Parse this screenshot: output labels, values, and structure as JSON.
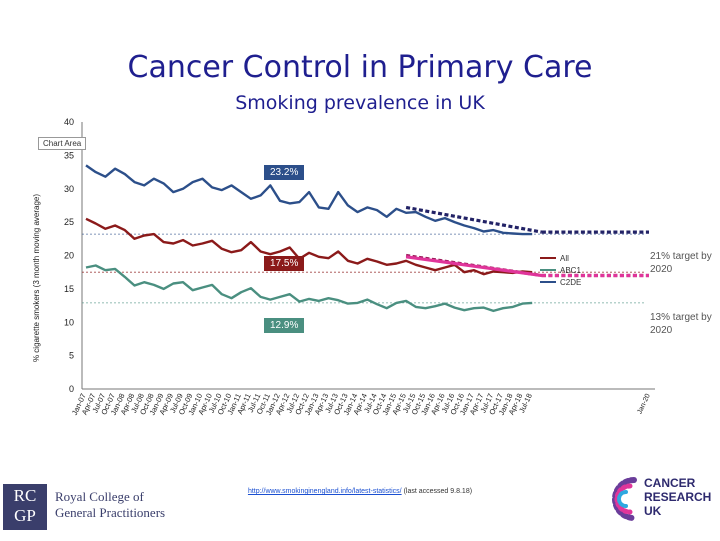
{
  "title": "Cancer Control in Primary Care",
  "subtitle": "Smoking prevalence in UK",
  "chart_area_tag": "Chart Area",
  "chart_data": {
    "type": "line",
    "ylabel": "% cigarette smokers (3 month moving average)",
    "ylim": [
      0,
      40
    ],
    "yticks": [
      0,
      5,
      10,
      15,
      20,
      25,
      30,
      35,
      40
    ],
    "xticklabels": [
      "Jan-07",
      "Apr-07",
      "Jul-07",
      "Oct-07",
      "Jan-08",
      "Apr-08",
      "Jul-08",
      "Oct-08",
      "Jan-09",
      "Apr-09",
      "Jul-09",
      "Oct-09",
      "Jan-10",
      "Apr-10",
      "Jul-10",
      "Oct-10",
      "Jan-11",
      "Apr-11",
      "Jul-11",
      "Oct-11",
      "Jan-12",
      "Apr-12",
      "Jul-12",
      "Oct-12",
      "Jan-13",
      "Apr-13",
      "Jul-13",
      "Oct-13",
      "Jan-14",
      "Apr-14",
      "Jul-14",
      "Oct-14",
      "Jan-15",
      "Apr-15",
      "Jul-15",
      "Oct-15",
      "Jan-16",
      "Apr-16",
      "Jul-16",
      "Oct-16",
      "Jan-17",
      "Apr-17",
      "Jul-17",
      "Oct-17",
      "Jan-18",
      "Apr-18",
      "Jul-18"
    ],
    "extra_xticklabel": "Jan-20",
    "series": [
      {
        "name": "C2DE",
        "color": "#2c4f8a",
        "values": [
          33.5,
          32.5,
          31.8,
          33,
          32.2,
          31,
          30.5,
          31.5,
          30.8,
          29.5,
          30,
          31,
          31.5,
          30.2,
          29.8,
          30.5,
          29.5,
          28.5,
          29,
          30.5,
          28.2,
          27.8,
          28,
          29.5,
          27.2,
          27,
          29.5,
          27.5,
          26.5,
          27.2,
          26.8,
          25.8,
          27,
          26.4,
          26.5,
          25.8,
          25.2,
          25.6,
          25,
          24.5,
          24.1,
          23.6,
          23.8,
          23.4,
          23.3,
          23.2,
          23.2
        ]
      },
      {
        "name": "All",
        "color": "#8b1a1a",
        "values": [
          25.5,
          24.8,
          24,
          24.5,
          23.8,
          22.5,
          23,
          23.2,
          22,
          21.8,
          22.3,
          21.5,
          21.8,
          22.2,
          21,
          20.5,
          20.8,
          22,
          20.6,
          20.2,
          20.6,
          21.2,
          19.5,
          20.4,
          19.8,
          19.6,
          20.6,
          19.2,
          18.8,
          19.5,
          19.1,
          18.6,
          18.8,
          19.2,
          18.6,
          18.2,
          17.8,
          18.2,
          18.6,
          17.5,
          17.8,
          17.2,
          17.6,
          17.5,
          17.4,
          17.6,
          17.5
        ]
      },
      {
        "name": "ABC1",
        "color": "#4a8f80",
        "values": [
          18.2,
          18.5,
          17.8,
          18,
          16.8,
          15.5,
          16,
          15.6,
          15,
          15.8,
          16,
          14.8,
          15.2,
          15.6,
          14.2,
          13.6,
          14.5,
          15.1,
          13.8,
          13.4,
          13.8,
          14.2,
          13.1,
          13.5,
          13.2,
          13.6,
          13.3,
          12.8,
          12.9,
          13.4,
          12.7,
          12.1,
          12.9,
          13.2,
          12.3,
          12.1,
          12.4,
          12.8,
          12.2,
          11.8,
          12.1,
          12.2,
          11.7,
          12.1,
          12.3,
          12.8,
          12.9
        ]
      }
    ],
    "reference_lines": [
      {
        "label": "23.2%",
        "value": 23.2,
        "color": "#2c4f8a"
      },
      {
        "label": "17.5%",
        "value": 17.5,
        "color": "#8b1a1a"
      },
      {
        "label": "12.9%",
        "value": 12.9,
        "color": "#4a8f80"
      }
    ],
    "trend_lines": [
      {
        "name": "C2DE trend",
        "color": "#222266",
        "style": "dotted",
        "from": [
          33,
          27.2
        ],
        "to": [
          47,
          23.5
        ],
        "extend_to": 84
      },
      {
        "name": "All trend",
        "color": "#9b1b5a",
        "style": "dotted",
        "from": [
          33,
          20
        ],
        "to": [
          47,
          17
        ],
        "extend_to": 84
      },
      {
        "name": "ABC1 target trend",
        "color": "#e0359a",
        "style": "solid",
        "from": [
          33,
          19.8
        ],
        "to": [
          47,
          17
        ],
        "extend_to": 84
      }
    ],
    "legend": [
      "All",
      "ABC1",
      "C2DE"
    ],
    "annotations": [
      {
        "text": "21% target by 2020"
      },
      {
        "text": "13% target by 2020"
      }
    ]
  },
  "footer": {
    "rcgp_logo": "RCGP",
    "rcgp_name_1": "Royal College of",
    "rcgp_name_2": "General Practitioners",
    "link_text": "http://www.smokinginengland.info/latest-statistics/",
    "accessed": " (last accessed 9.8.18)",
    "cru_line1": "CANCER",
    "cru_line2": "RESEARCH",
    "cru_line3": "UK"
  }
}
